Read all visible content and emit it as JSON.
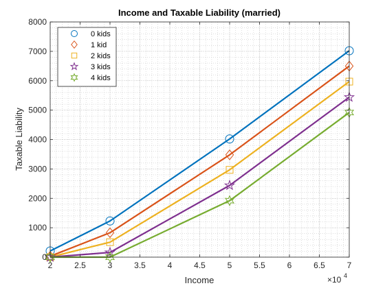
{
  "chart_data": {
    "type": "line",
    "title": "Income and Taxable Liability (married)",
    "xlabel": "Income",
    "ylabel": "Taxable Liability",
    "x_exponent_base": "×10",
    "x_exponent_power": "4",
    "x": [
      20000,
      30000,
      50000,
      70000
    ],
    "xlim": [
      20000,
      70000
    ],
    "ylim": [
      0,
      8000
    ],
    "x_ticks": [
      20000,
      25000,
      30000,
      35000,
      40000,
      45000,
      50000,
      55000,
      60000,
      65000,
      70000
    ],
    "x_tick_labels": [
      "2",
      "2.5",
      "3",
      "3.5",
      "4",
      "4.5",
      "5",
      "5.5",
      "6",
      "6.5",
      "7"
    ],
    "y_ticks": [
      0,
      1000,
      2000,
      3000,
      4000,
      5000,
      6000,
      7000,
      8000
    ],
    "y_tick_labels": [
      "0",
      "1000",
      "2000",
      "3000",
      "4000",
      "5000",
      "6000",
      "7000",
      "8000"
    ],
    "grid": true,
    "minor_grid": true,
    "legend_position": "top-left",
    "series": [
      {
        "name": "0 kids",
        "marker": "circle",
        "color": "#0072BD",
        "values": [
          210,
          1230,
          4020,
          7020
        ]
      },
      {
        "name": "1 kid",
        "marker": "diamond",
        "color": "#D95319",
        "values": [
          30,
          830,
          3480,
          6500
        ]
      },
      {
        "name": "2 kids",
        "marker": "square",
        "color": "#EDB120",
        "values": [
          0,
          510,
          2970,
          5970
        ]
      },
      {
        "name": "3 kids",
        "marker": "pentagram",
        "color": "#7E2F8E",
        "values": [
          0,
          160,
          2440,
          5440
        ]
      },
      {
        "name": "4 kids",
        "marker": "hexagram",
        "color": "#77AC30",
        "values": [
          0,
          0,
          1920,
          4920
        ]
      }
    ]
  }
}
